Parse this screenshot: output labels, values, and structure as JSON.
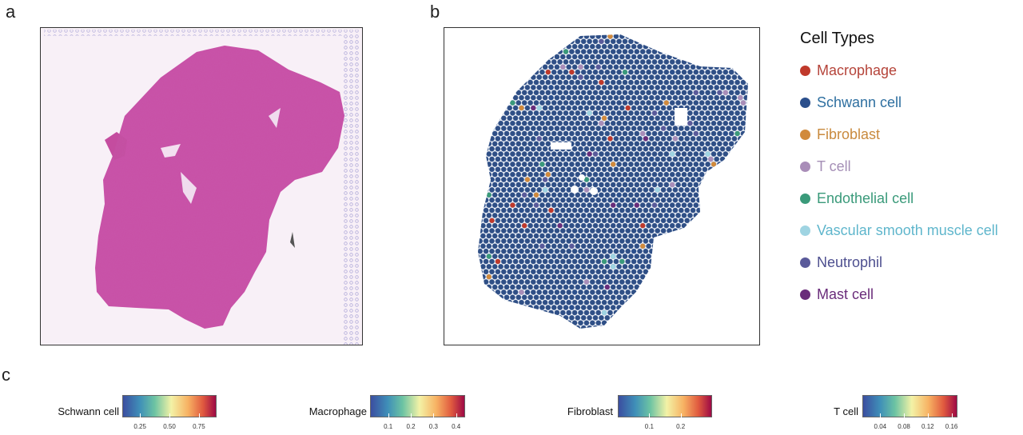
{
  "panels": {
    "a": "a",
    "b": "b",
    "c": "c"
  },
  "legend": {
    "title": "Cell Types",
    "items": [
      {
        "label": "Macrophage",
        "color": "#c0392b",
        "text_color": "#b5443a"
      },
      {
        "label": "Schwann cell",
        "color": "#2b4f8c",
        "text_color": "#2e6fa0"
      },
      {
        "label": "Fibroblast",
        "color": "#d18a3c",
        "text_color": "#c98a3e"
      },
      {
        "label": "T cell",
        "color": "#a98db8",
        "text_color": "#a58fb6"
      },
      {
        "label": "Endothelial cell",
        "color": "#3a9a7a",
        "text_color": "#3a9a7a"
      },
      {
        "label": "Vascular smooth muscle cell",
        "color": "#9fd4e2",
        "text_color": "#5fb6cc"
      },
      {
        "label": "Neutrophil",
        "color": "#5a5a9a",
        "text_color": "#4d4f8f"
      },
      {
        "label": "Mast cell",
        "color": "#6a2c7a",
        "text_color": "#6a2c7a"
      }
    ]
  },
  "colorbars": [
    {
      "label": "Schwann cell",
      "ticks": [
        "0.25",
        "0.50",
        "0.75"
      ],
      "tick_values": [
        0.25,
        0.5,
        0.75
      ],
      "range": [
        0.1,
        0.9
      ]
    },
    {
      "label": "Macrophage",
      "ticks": [
        "0.1",
        "0.2",
        "0.3",
        "0.4"
      ],
      "tick_values": [
        0.1,
        0.2,
        0.3,
        0.4
      ],
      "range": [
        0.02,
        0.44
      ]
    },
    {
      "label": "Fibroblast",
      "ticks": [
        "0.1",
        "0.2"
      ],
      "tick_values": [
        0.1,
        0.2
      ],
      "range": [
        0.0,
        0.3
      ]
    },
    {
      "label": "T cell",
      "ticks": [
        "0.04",
        "0.08",
        "0.12",
        "0.16"
      ],
      "tick_values": [
        0.04,
        0.08,
        0.12,
        0.16
      ],
      "range": [
        0.01,
        0.17
      ]
    }
  ],
  "colors": {
    "tissue": "#c94fa5",
    "tissue_dark": "#b13f90",
    "slide_bg": "#f6eef6",
    "spot": "#2f4f86",
    "fiducial": "#a9a3d6"
  }
}
